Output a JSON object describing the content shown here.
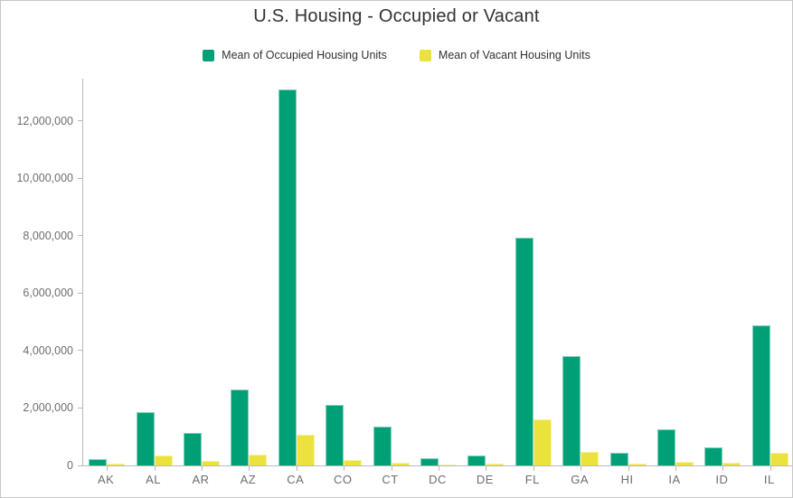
{
  "chart_data": {
    "type": "bar",
    "title": "U.S. Housing - Occupied or Vacant",
    "categories": [
      "AK",
      "AL",
      "AR",
      "AZ",
      "CA",
      "CO",
      "CT",
      "DC",
      "DE",
      "FL",
      "GA",
      "HI",
      "IA",
      "ID",
      "IL"
    ],
    "series": [
      {
        "name": "Mean of Occupied Housing Units",
        "color": "#00a077",
        "values": [
          220000,
          1870000,
          1130000,
          2630000,
          13100000,
          2110000,
          1340000,
          250000,
          345000,
          7930000,
          3810000,
          430000,
          1250000,
          640000,
          4880000
        ]
      },
      {
        "name": "Mean of Vacant Housing Units",
        "color": "#ece23d",
        "values": [
          60000,
          350000,
          160000,
          370000,
          1070000,
          200000,
          105000,
          30000,
          65000,
          1600000,
          460000,
          75000,
          120000,
          85000,
          450000
        ]
      }
    ],
    "xlabel": "",
    "ylabel": "",
    "ylim": [
      0,
      13480000
    ],
    "yticks": [
      0,
      2000000,
      4000000,
      6000000,
      8000000,
      10000000,
      12000000
    ],
    "ytick_labels": [
      "0",
      "2,000,000",
      "4,000,000",
      "6,000,000",
      "8,000,000",
      "10,000,000",
      "12,000,000"
    ],
    "grid": false,
    "legend_position": "top",
    "colors": {
      "axis_line": "#b9b9b9",
      "axis_text": "#6e6e6e",
      "title_text": "#323232",
      "frame_border": "#c7c7c7"
    }
  }
}
